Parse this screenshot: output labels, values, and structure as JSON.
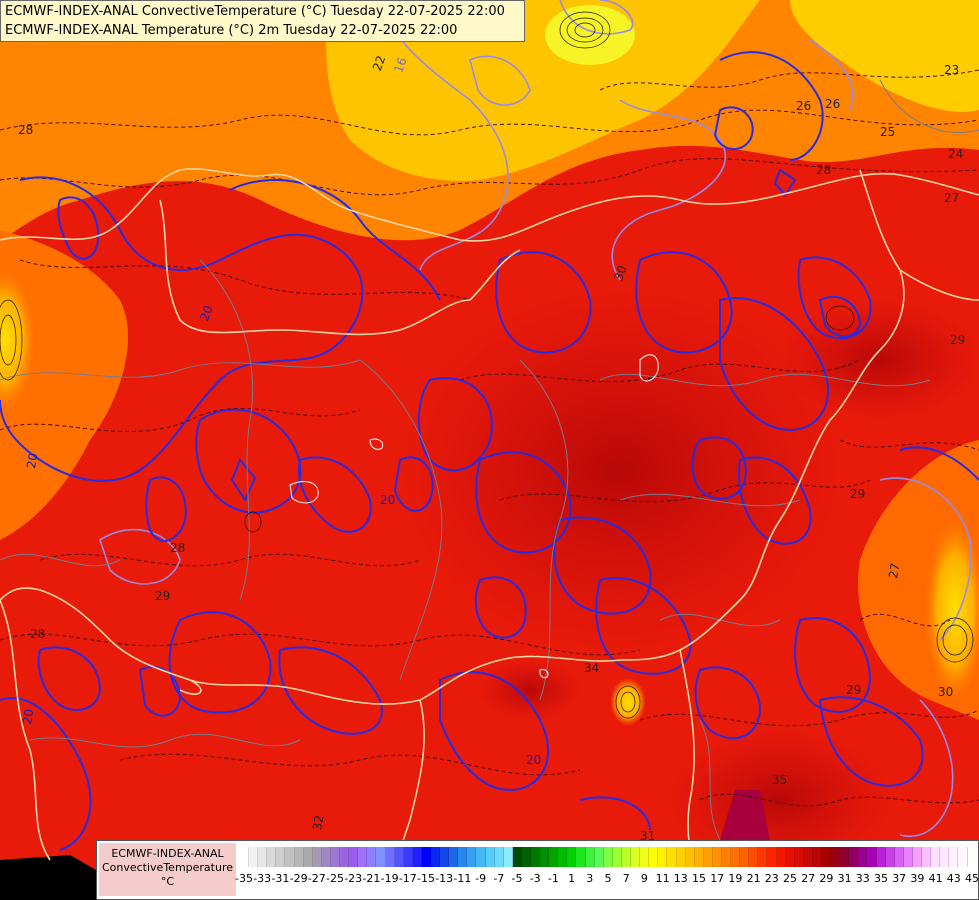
{
  "header": {
    "line1": "ECMWF-INDEX-ANAL ConvectiveTemperature (°C) Tuesday 22-07-2025 22:00",
    "line2": "ECMWF-INDEX-ANAL Temperature (°C) 2m Tuesday 22-07-2025 22:00"
  },
  "legend": {
    "model": "ECMWF-INDEX-ANAL",
    "parameter": "ConvectiveTemperature",
    "unit": "°C",
    "ticks": [
      "-35",
      "-33",
      "-31",
      "-29",
      "-27",
      "-25",
      "-23",
      "-21",
      "-19",
      "-17",
      "-15",
      "-13",
      "-11",
      "-9",
      "-7",
      "-5",
      "-3",
      "-1",
      "1",
      "3",
      "5",
      "7",
      "9",
      "11",
      "13",
      "15",
      "17",
      "19",
      "21",
      "23",
      "25",
      "27",
      "29",
      "31",
      "33",
      "35",
      "37",
      "39",
      "41",
      "43",
      "45"
    ],
    "colors": [
      "#ffffff",
      "#f2f2f2",
      "#e6e6e6",
      "#dadada",
      "#cecece",
      "#c2c2c2",
      "#b6b6b6",
      "#aaaaaa",
      "#a49bb0",
      "#a088c4",
      "#9c77d4",
      "#9966e0",
      "#9a5cf0",
      "#a070ff",
      "#9080ff",
      "#8090ff",
      "#7070ff",
      "#5555ff",
      "#3b3bff",
      "#1f1fff",
      "#0000ff",
      "#0a28f0",
      "#1448e6",
      "#1e68e6",
      "#2888ec",
      "#34a0f0",
      "#44b8f4",
      "#58ccf6",
      "#6cdcf8",
      "#88ecfa",
      "#004b00",
      "#006200",
      "#007800",
      "#008f00",
      "#00a500",
      "#00bc00",
      "#00d200",
      "#1ee61e",
      "#3cf03c",
      "#5af85a",
      "#7cff3c",
      "#9cff30",
      "#bcff28",
      "#dcff20",
      "#f0ff18",
      "#ffff00",
      "#fff000",
      "#ffe000",
      "#ffd000",
      "#ffc000",
      "#ffb000",
      "#ffa000",
      "#ff9000",
      "#ff8000",
      "#ff7000",
      "#ff6000",
      "#ff4c00",
      "#ff3800",
      "#ff2400",
      "#f41800",
      "#e61000",
      "#d80c00",
      "#c80808",
      "#b80404",
      "#a80000",
      "#980010",
      "#900030",
      "#900060",
      "#9a0090",
      "#a800b8",
      "#b820d8",
      "#c840e8",
      "#d860f4",
      "#e880fc",
      "#f4a0ff",
      "#f8c0ff",
      "#fce0ff",
      "#ffe8ff",
      "#fff0ff",
      "#fff8ff"
    ]
  },
  "map_labels": {
    "isotherms": [
      {
        "text": "22",
        "kind": "dashed"
      },
      {
        "text": "16",
        "kind": "lavender"
      },
      {
        "text": "26",
        "kind": "dashed"
      },
      {
        "text": "25",
        "kind": "dashed"
      },
      {
        "text": "24",
        "kind": "dashed"
      },
      {
        "text": "28",
        "kind": "dashed"
      },
      {
        "text": "27",
        "kind": "dashed"
      },
      {
        "text": "30",
        "kind": "dashed"
      },
      {
        "text": "29",
        "kind": "dashed"
      },
      {
        "text": "20",
        "kind": "blue"
      },
      {
        "text": "28",
        "kind": "dashed"
      },
      {
        "text": "31",
        "kind": "dashed"
      },
      {
        "text": "32",
        "kind": "dashed"
      },
      {
        "text": "34",
        "kind": "dashed"
      },
      {
        "text": "35",
        "kind": "dashed"
      },
      {
        "text": "29",
        "kind": "dashed"
      },
      {
        "text": "30",
        "kind": "dashed"
      },
      {
        "text": "27",
        "kind": "dashed"
      },
      {
        "text": "20",
        "kind": "blue"
      },
      {
        "text": "20",
        "kind": "blue"
      },
      {
        "text": "20",
        "kind": "blue"
      },
      {
        "text": "28",
        "kind": "dashed"
      },
      {
        "text": "29",
        "kind": "dashed"
      },
      {
        "text": "20",
        "kind": "blue"
      },
      {
        "text": "28",
        "kind": "dashed"
      },
      {
        "text": "29",
        "kind": "dashed"
      },
      {
        "text": "26",
        "kind": "dashed"
      },
      {
        "text": "23",
        "kind": "dashed"
      }
    ]
  }
}
